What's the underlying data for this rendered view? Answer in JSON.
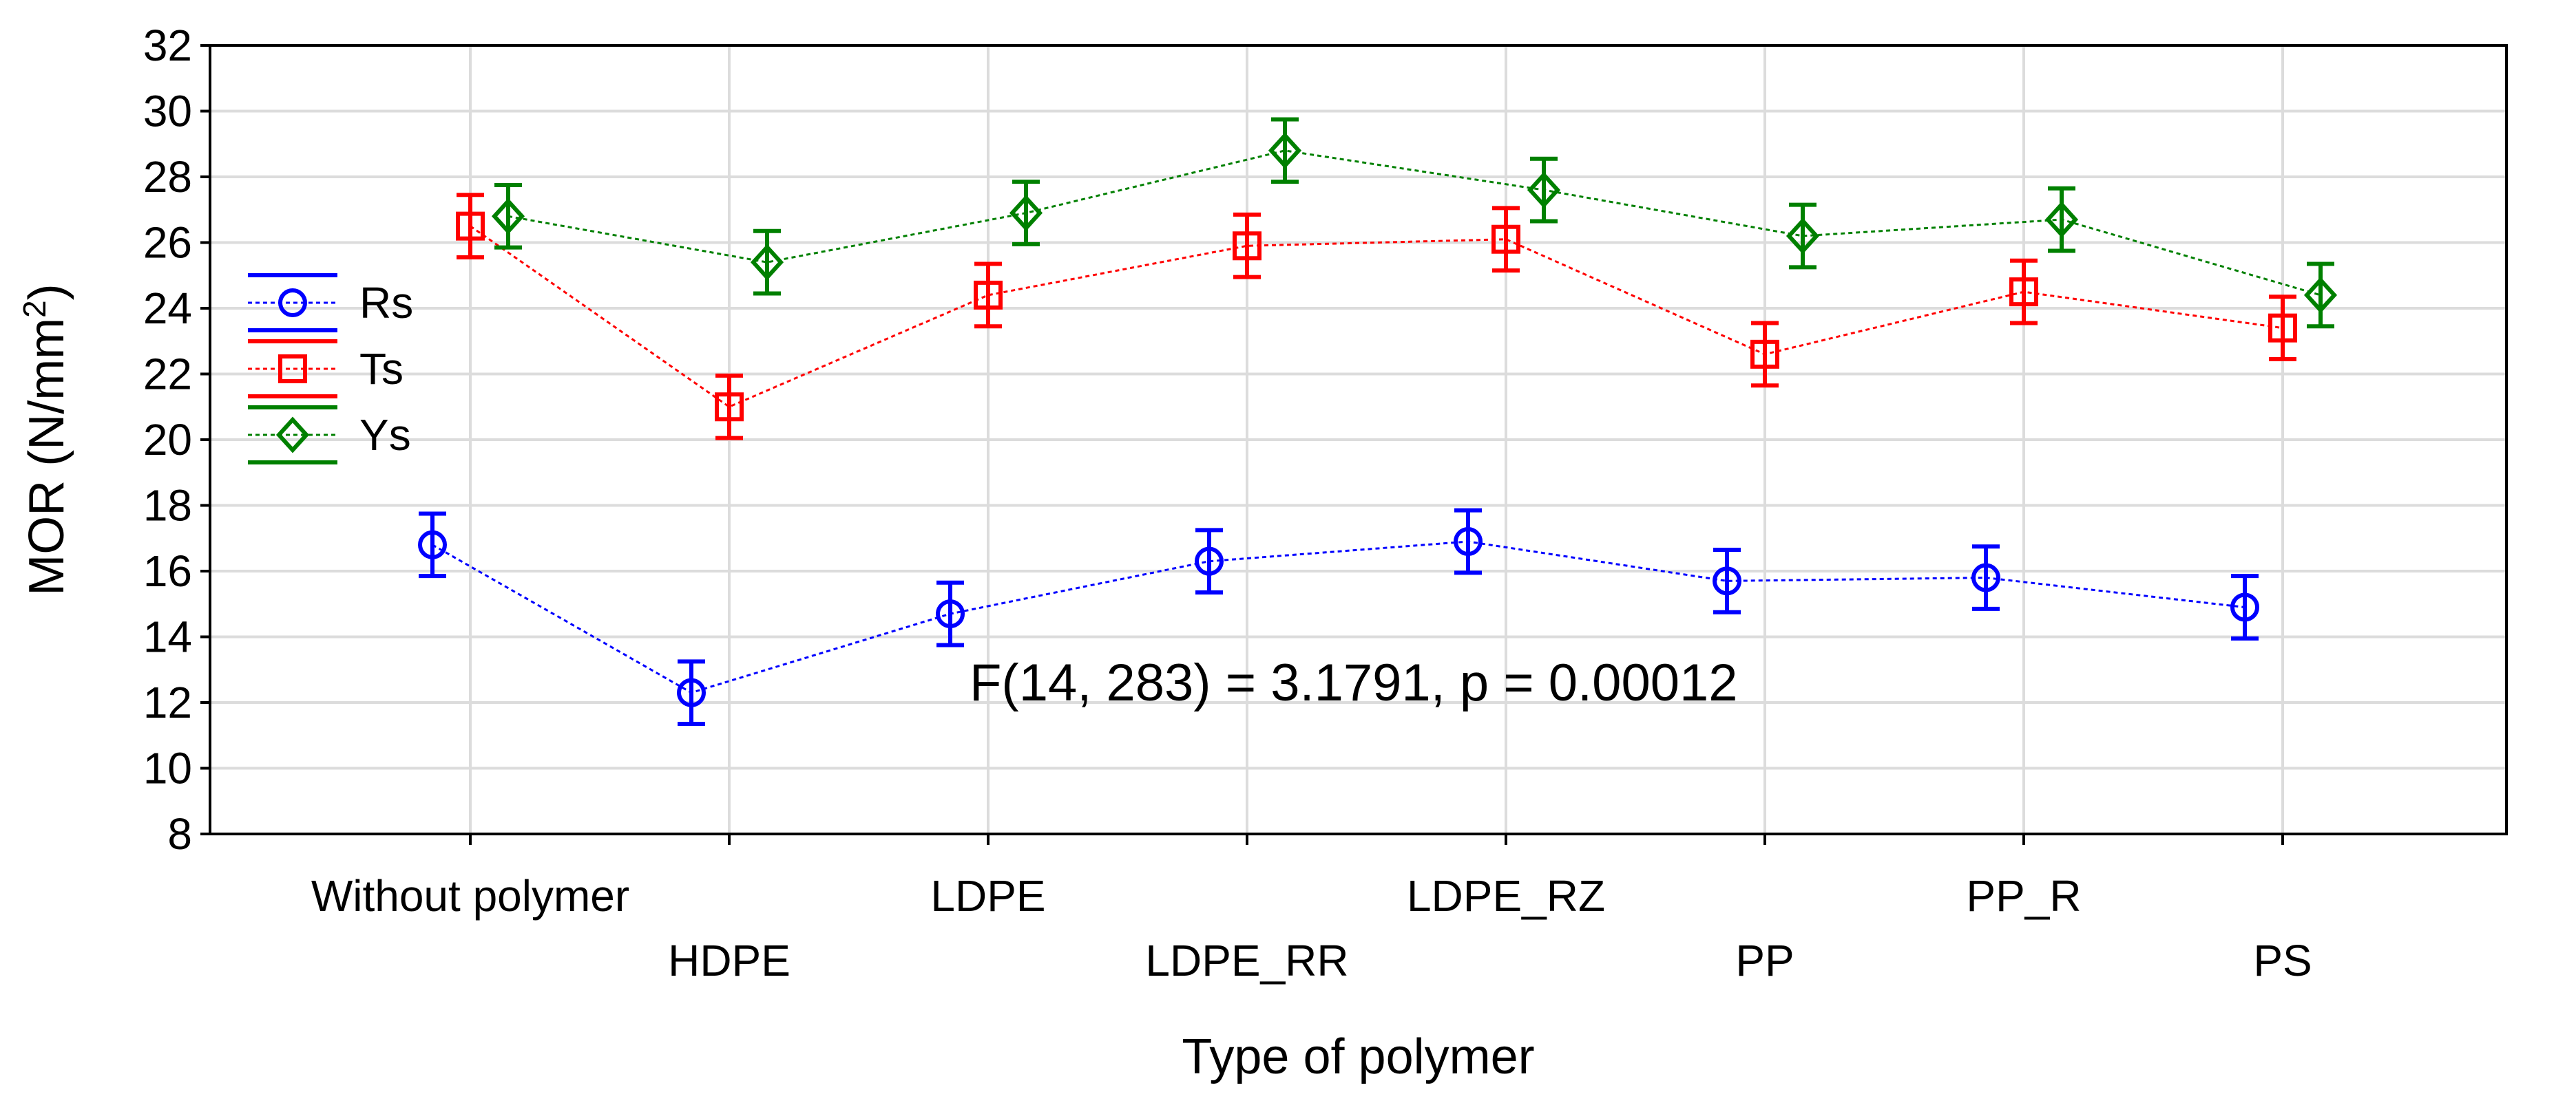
{
  "chart_data": {
    "type": "line",
    "title": "",
    "xlabel": "Type of polymer",
    "ylabel_main": "MOR (N/mm",
    "ylabel_sup": "2",
    "ylabel_close": ")",
    "ylim": [
      8,
      32
    ],
    "yticks": [
      "8",
      "10",
      "12",
      "14",
      "16",
      "18",
      "20",
      "22",
      "24",
      "26",
      "28",
      "30",
      "32"
    ],
    "grid": true,
    "legend_placement": "left",
    "categories": [
      "Without polymer",
      "HDPE",
      "LDPE",
      "LDPE_RR",
      "LDPE_RZ",
      "PP",
      "PP_R",
      "PS"
    ],
    "series": [
      {
        "name": "Rs",
        "marker": "circle",
        "color": "#0000ff",
        "values": [
          16.8,
          12.3,
          14.7,
          16.3,
          16.9,
          15.7,
          15.8,
          14.9
        ],
        "errors": [
          0.95,
          0.95,
          0.95,
          0.95,
          0.95,
          0.95,
          0.95,
          0.95
        ]
      },
      {
        "name": "Ts",
        "marker": "square",
        "color": "#ff0000",
        "values": [
          26.5,
          21.0,
          24.4,
          25.9,
          26.1,
          22.6,
          24.5,
          23.4
        ],
        "errors": [
          0.95,
          0.95,
          0.95,
          0.95,
          0.95,
          0.95,
          0.95,
          0.95
        ]
      },
      {
        "name": "Ys",
        "marker": "diamond",
        "color": "#008000",
        "values": [
          26.8,
          25.4,
          26.9,
          28.8,
          27.6,
          26.2,
          26.7,
          24.4
        ],
        "errors": [
          0.95,
          0.95,
          0.95,
          0.95,
          0.95,
          0.95,
          0.95,
          0.95
        ]
      }
    ],
    "annotation": "F(14, 283) = 3.1791, p = 0.00012"
  }
}
